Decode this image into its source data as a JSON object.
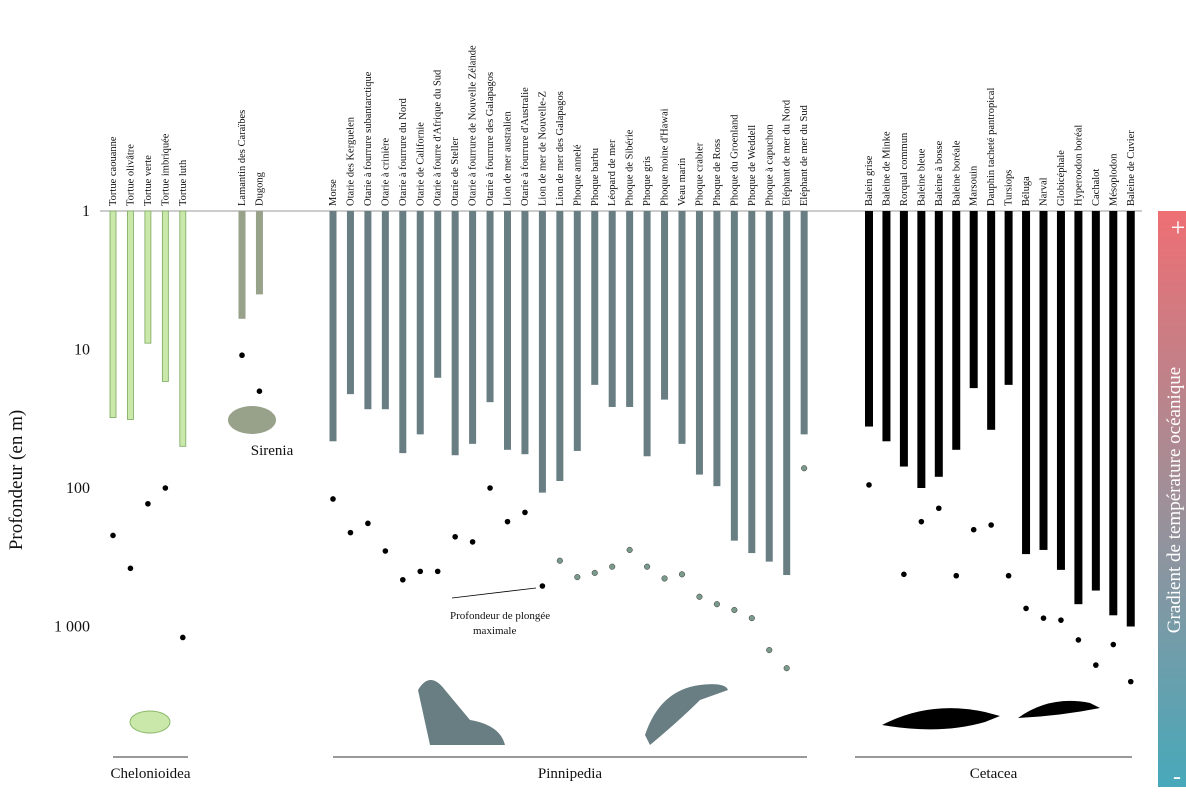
{
  "chart_data": {
    "type": "bar",
    "y_label": "Profondeur (en m)",
    "log_scale": true,
    "ylim": [
      1,
      10000
    ],
    "yticks": [
      1,
      10,
      100,
      {
        "value": 1000,
        "label": "1 000"
      }
    ],
    "annotation": [
      "Profondeur de plongée",
      "maximale"
    ],
    "gradient_label": "Gradient de température océanique",
    "gradient_top": "+",
    "gradient_bottom": "-",
    "groups": [
      {
        "name": "Chelonioidea",
        "color": "#c9e8a9",
        "marker_color": "#000000",
        "categories": [
          "Tortue caouanne",
          "Tortue olivâtre",
          "Tortue verte",
          "Tortue imbriquée",
          "Tortue luth"
        ],
        "values": [
          31,
          32,
          9,
          17,
          50
        ],
        "max_values": [
          220,
          380,
          130,
          100,
          1200
        ]
      },
      {
        "name": "Sirenia",
        "color": "#98a28a",
        "marker_color": "#000000",
        "categories": [
          "Lamantin des Caraïbes",
          "Dugong"
        ],
        "values": [
          6,
          4
        ],
        "max_values": [
          11,
          20
        ]
      },
      {
        "name": "Pinnipedia",
        "color": "#687e83",
        "marker_color": "#000000",
        "categories": [
          "Morse",
          "Otarie des Kerguelen",
          "Otarie à fourrure subantarctique",
          "Otarie à crinière",
          "Otarie à fourrure du Nord",
          "Otarie de Californie",
          "Otarie à fourre d'Afrique du Sud",
          "Otarie de Steller",
          "Otarie à fourrure de Nouvelle Zélande",
          "Otarie à fourrure des Galapagos",
          "Lion de mer australien",
          "Otarie à fourrure d'Australie",
          "Lion de mer de Nouvelle-Z",
          "Lion de mer des Galapagos",
          "Phoque annelé",
          "Phoque barbu",
          "Léopard de mer",
          "Phoque de Sibérie",
          "Phoque gris",
          "Phoque moine d'Hawai",
          "Veau marin",
          "Phoque crabier",
          "Phoque de Ross",
          "Phoque du Groenland",
          "Phoque de Weddell",
          "Phoque à capuchon",
          "Eléphant de mer du Nord",
          "Eléphant de mer du Sud"
        ],
        "values": [
          46,
          21,
          27,
          27,
          56,
          41,
          16,
          58,
          48,
          24,
          53,
          57,
          108,
          89,
          54,
          18,
          26,
          26,
          59,
          23,
          48,
          80,
          97,
          240,
          295,
          340,
          425,
          41
        ],
        "max_values": [
          120,
          210,
          180,
          285,
          460,
          400,
          400,
          225,
          245,
          100,
          175,
          150,
          510,
          335,
          440,
          410,
          370,
          280,
          370,
          450,
          420,
          610,
          690,
          760,
          870,
          1480,
          2000,
          72
        ]
      },
      {
        "name": "Cetacea",
        "color": "#000000",
        "marker_color": "#000000",
        "categories": [
          "Balein grise",
          "Baleine de Minke",
          "Rorqual commun",
          "Baleine bleue",
          "Baleine à bosse",
          "Baleine boréale",
          "Marsouin",
          "Dauphin tacheté pantropical",
          "Tursiops",
          "Béluga",
          "Narval",
          "Globicéphale",
          "Hyperoodon boréal",
          "Cachalot",
          "Mésoplodon",
          "Baleine de Cuvier"
        ],
        "values": [
          36,
          46,
          70,
          100,
          83,
          53,
          19,
          38,
          18,
          300,
          280,
          390,
          690,
          550,
          830,
          1000
        ],
        "max_values": [
          95,
          null,
          420,
          175,
          140,
          430,
          200,
          185,
          430,
          740,
          870,
          900,
          1250,
          1900,
          1350,
          2500
        ]
      }
    ]
  }
}
